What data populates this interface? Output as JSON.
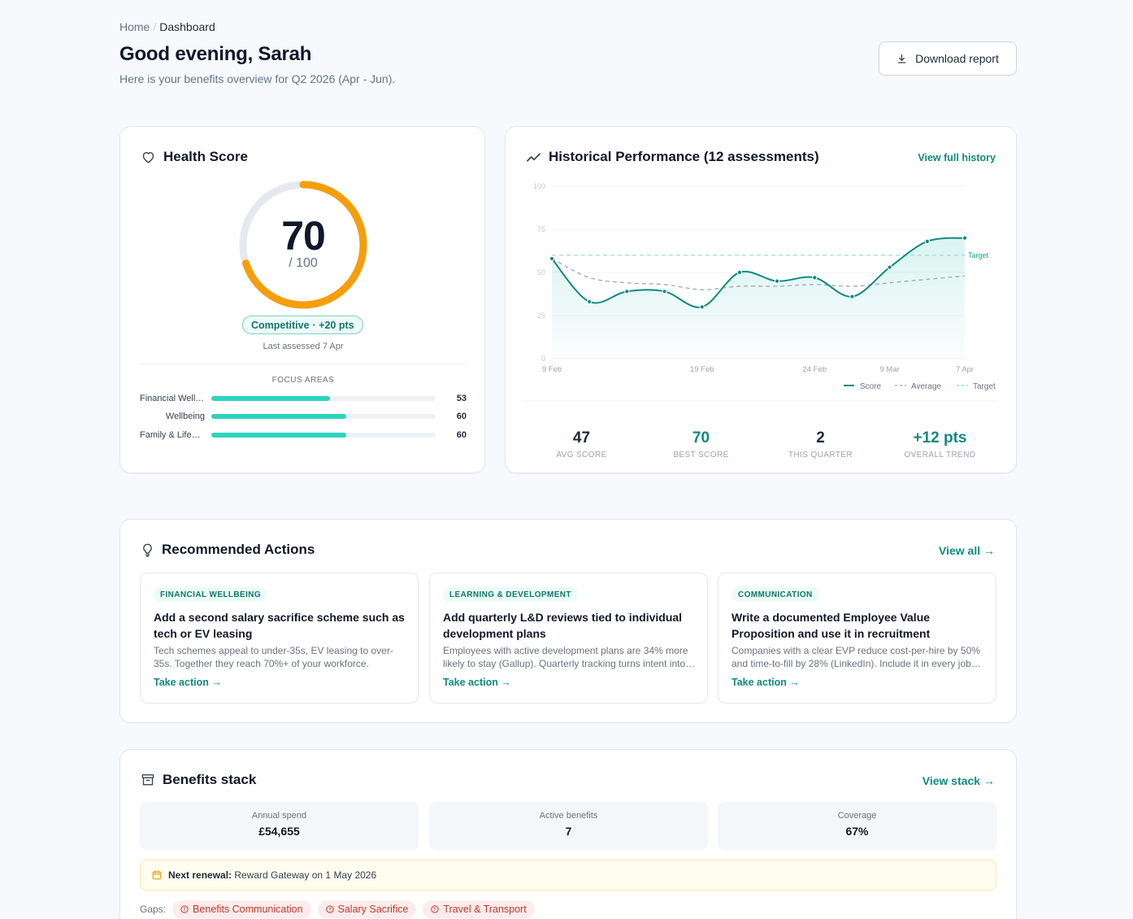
{
  "breadcrumb": {
    "home": "Home",
    "current": "Dashboard"
  },
  "header": {
    "title": "Good evening, Sarah",
    "subtitle": "Here is your benefits overview for Q2 2026 (Apr - Jun).",
    "download_label": "Download report"
  },
  "health": {
    "title": "Health Score",
    "score": "70",
    "score_value": 70,
    "total": "/ 100",
    "badge_label": "Competitive",
    "badge_delta": "· +20 pts",
    "last_assessed": "Last assessed 7 Apr",
    "focus_title": "FOCUS AREAS",
    "focus_areas": [
      {
        "name": "Financial Wellbeing",
        "value": "53",
        "pct": 53
      },
      {
        "name": "Wellbeing",
        "value": "60",
        "pct": 60
      },
      {
        "name": "Family & Lifestyle",
        "value": "60",
        "pct": 60
      }
    ],
    "colors": {
      "gauge": "#f59e0b",
      "track": "#e5e7eb"
    }
  },
  "history": {
    "title": "Historical Performance (12 assessments)",
    "link": "View full history",
    "target_label": "Target",
    "legend": {
      "score": "Score",
      "average": "Average",
      "target": "Target"
    },
    "stats": [
      {
        "value": "47",
        "label": "AVG SCORE"
      },
      {
        "value": "70",
        "label": "BEST SCORE"
      },
      {
        "value": "2",
        "label": "THIS QUARTER"
      },
      {
        "value": "+12 pts",
        "label": "OVERALL TREND"
      }
    ]
  },
  "chart_data": {
    "type": "line",
    "ylim": [
      0,
      100
    ],
    "yticks": [
      "0",
      "25",
      "50",
      "75",
      "100"
    ],
    "xtick_labels": [
      "9 Feb",
      "19 Feb",
      "24 Feb",
      "9 Mar",
      "7 Apr"
    ],
    "target": 60,
    "series": [
      {
        "name": "Score",
        "values": [
          58,
          33,
          39,
          39,
          30,
          50,
          45,
          47,
          36,
          53,
          68,
          70
        ],
        "color": "#0f8a7e"
      },
      {
        "name": "Average",
        "values": [
          58,
          47,
          44,
          43,
          40,
          42,
          42,
          43,
          42,
          44,
          46,
          48
        ],
        "color": "#9ca3af"
      }
    ]
  },
  "recommend": {
    "title": "Recommended Actions",
    "link": "View all",
    "actions": [
      {
        "tag": "FINANCIAL WELLBEING",
        "title": "Add a second salary sacrifice scheme such as tech or EV leasing",
        "desc": "Tech schemes appeal to under-35s, EV leasing to over-35s. Together they reach 70%+ of your workforce.",
        "link": "Take action"
      },
      {
        "tag": "LEARNING & DEVELOPMENT",
        "title": "Add quarterly L&D reviews tied to individual development plans",
        "desc": "Employees with active development plans are 34% more likely to stay (Gallup). Quarterly tracking turns intent into outcomes.",
        "link": "Take action"
      },
      {
        "tag": "COMMUNICATION",
        "title": "Write a documented Employee Value Proposition and use it in recruitment",
        "desc": "Companies with a clear EVP reduce cost-per-hire by 50% and time-to-fill by 28% (LinkedIn). Include it in every job advert.",
        "link": "Take action"
      }
    ]
  },
  "benefits": {
    "title": "Benefits stack",
    "link": "View stack",
    "metrics": [
      {
        "label": "Annual spend",
        "value": "£54,655"
      },
      {
        "label": "Active benefits",
        "value": "7"
      },
      {
        "label": "Coverage",
        "value": "67%"
      }
    ],
    "renewal_label": "Next renewal:",
    "renewal_text": "Reward Gateway on 1 May 2026",
    "gaps_label": "Gaps:",
    "gaps": [
      "Benefits Communication",
      "Salary Sacrifice",
      "Travel & Transport"
    ]
  }
}
